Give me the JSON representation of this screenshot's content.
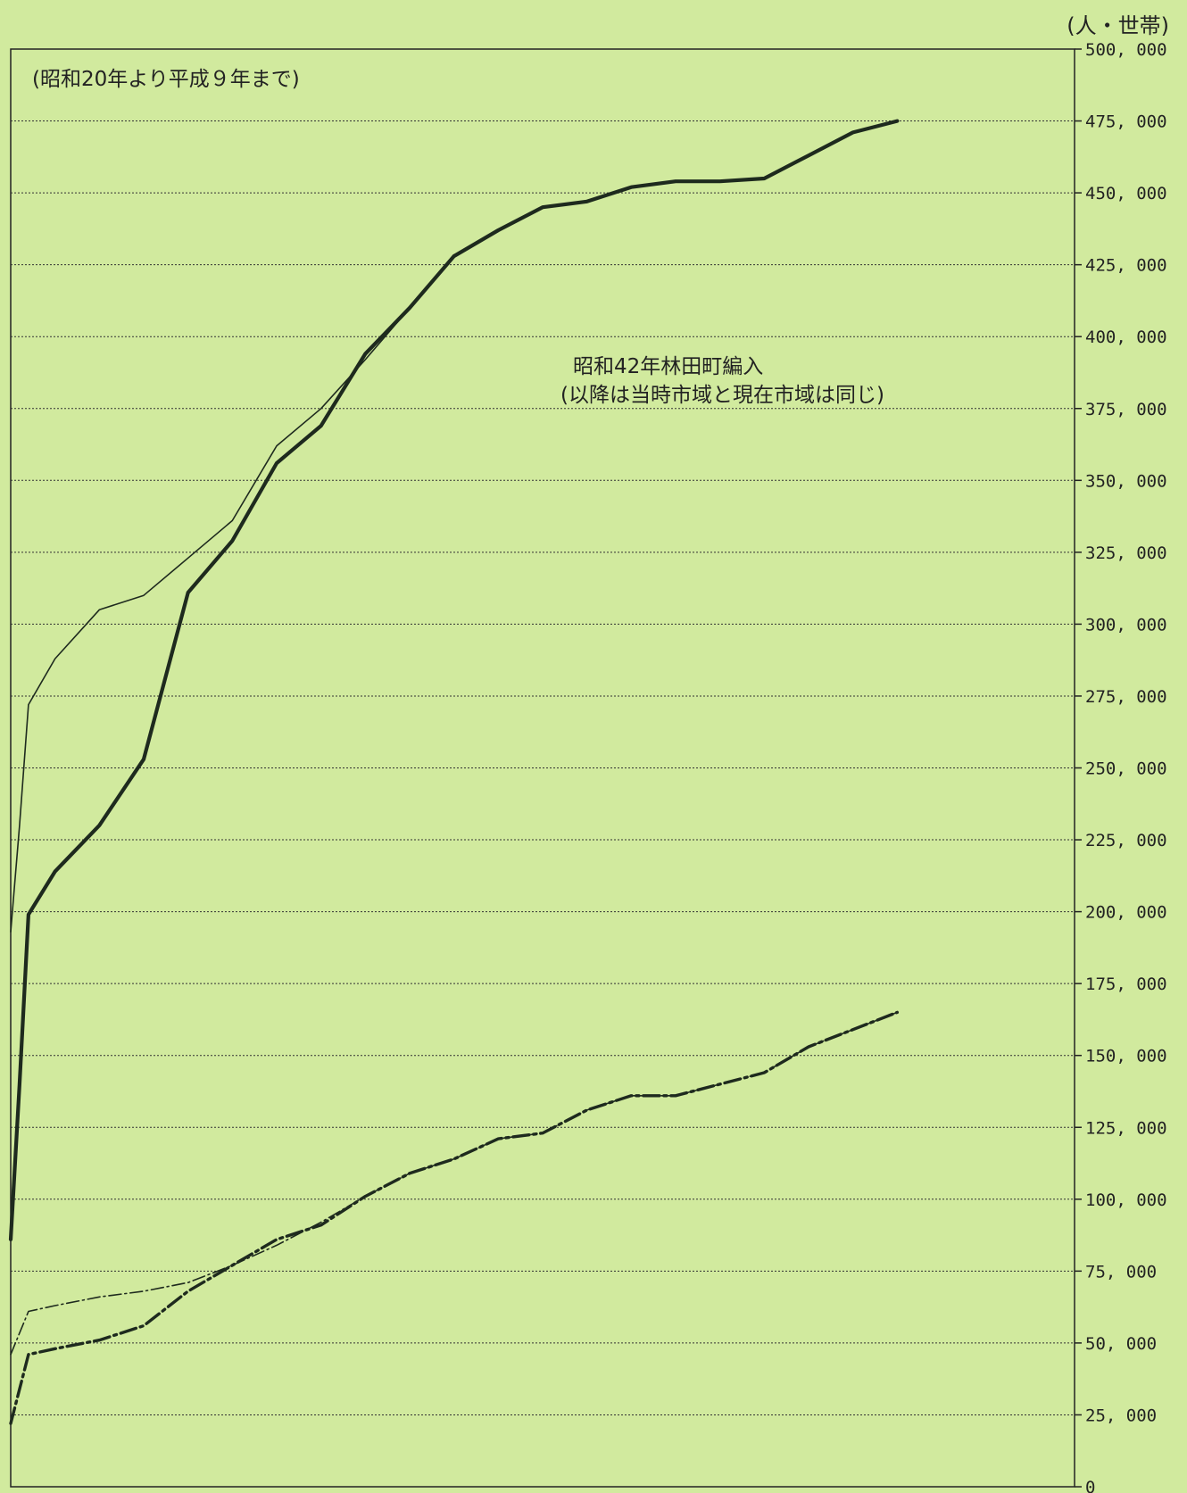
{
  "chart_data": {
    "type": "line",
    "unit_label": "(人・世帯)",
    "period_note": "(昭和20年より平成９年まで)",
    "annotation": {
      "lines": [
        "昭和42年林田町編入",
        "(以降は当時市域と現在市域は同じ)"
      ]
    },
    "ylim": [
      0,
      500000
    ],
    "yticks": [
      {
        "value": 0,
        "label": "0"
      },
      {
        "value": 25000,
        "label": "25, 000"
      },
      {
        "value": 50000,
        "label": "50, 000"
      },
      {
        "value": 75000,
        "label": "75, 000"
      },
      {
        "value": 100000,
        "label": "100, 000"
      },
      {
        "value": 125000,
        "label": "125, 000"
      },
      {
        "value": 150000,
        "label": "150, 000"
      },
      {
        "value": 175000,
        "label": "175, 000"
      },
      {
        "value": 200000,
        "label": "200, 000"
      },
      {
        "value": 225000,
        "label": "225, 000"
      },
      {
        "value": 250000,
        "label": "250, 000"
      },
      {
        "value": 275000,
        "label": "275, 000"
      },
      {
        "value": 300000,
        "label": "300, 000"
      },
      {
        "value": 325000,
        "label": "325, 000"
      },
      {
        "value": 350000,
        "label": "350, 000"
      },
      {
        "value": 375000,
        "label": "375, 000"
      },
      {
        "value": 400000,
        "label": "400, 000"
      },
      {
        "value": 425000,
        "label": "425, 000"
      },
      {
        "value": 450000,
        "label": "450, 000"
      },
      {
        "value": 475000,
        "label": "475, 000"
      },
      {
        "value": 500000,
        "label": "500, 000"
      }
    ],
    "grid": true,
    "x": [
      1945,
      1950,
      1955,
      1960,
      1965,
      1967,
      1970,
      1975,
      1980,
      1985,
      1990,
      1995,
      1997
    ],
    "series": [
      {
        "style": "thin-solid",
        "color": "#1e2a1e",
        "points": [
          [
            1945,
            193000
          ],
          [
            1946,
            230000
          ],
          [
            1947,
            272000
          ],
          [
            1950,
            288000
          ],
          [
            1955,
            305000
          ],
          [
            1960,
            310000
          ],
          [
            1965,
            323000
          ],
          [
            1970,
            336000
          ],
          [
            1975,
            362000
          ],
          [
            1980,
            375000
          ],
          [
            1985,
            392000
          ],
          [
            1990,
            410000
          ],
          [
            1995,
            428000
          ],
          [
            2000,
            437000
          ],
          [
            2005,
            445000
          ],
          [
            2010,
            447000
          ],
          [
            2015,
            452000
          ],
          [
            2020,
            454000
          ],
          [
            2025,
            454000
          ],
          [
            2030,
            455000
          ],
          [
            2035,
            463000
          ],
          [
            2040,
            471000
          ],
          [
            2045,
            475000
          ]
        ]
      },
      {
        "style": "thick-solid",
        "color": "#1e2a1e",
        "points": [
          [
            1945,
            86000
          ],
          [
            1946,
            140000
          ],
          [
            1947,
            199000
          ],
          [
            1950,
            214000
          ],
          [
            1955,
            230000
          ],
          [
            1960,
            253000
          ],
          [
            1965,
            311000
          ],
          [
            1970,
            329000
          ],
          [
            1975,
            356000
          ],
          [
            1980,
            369000
          ],
          [
            1985,
            394000
          ],
          [
            1990,
            410000
          ],
          [
            1995,
            428000
          ],
          [
            2000,
            437000
          ],
          [
            2005,
            445000
          ],
          [
            2010,
            447000
          ],
          [
            2015,
            452000
          ],
          [
            2020,
            454000
          ],
          [
            2025,
            454000
          ],
          [
            2030,
            455000
          ],
          [
            2035,
            463000
          ],
          [
            2040,
            471000
          ],
          [
            2045,
            475000
          ]
        ]
      },
      {
        "style": "thin-dashdot",
        "color": "#1e2a1e",
        "points": [
          [
            1945,
            46000
          ],
          [
            1947,
            61000
          ],
          [
            1950,
            63000
          ],
          [
            1955,
            66000
          ],
          [
            1960,
            68000
          ],
          [
            1965,
            71000
          ],
          [
            1970,
            77000
          ],
          [
            1975,
            84000
          ],
          [
            1980,
            92000
          ],
          [
            1985,
            101000
          ],
          [
            1990,
            109000
          ],
          [
            1995,
            114000
          ],
          [
            2000,
            121000
          ],
          [
            2005,
            123000
          ],
          [
            2010,
            131000
          ],
          [
            2015,
            136000
          ],
          [
            2020,
            136000
          ],
          [
            2025,
            140000
          ],
          [
            2030,
            144000
          ],
          [
            2035,
            153000
          ],
          [
            2040,
            159000
          ],
          [
            2045,
            165000
          ]
        ]
      },
      {
        "style": "thick-dashdot",
        "color": "#1e2a1e",
        "points": [
          [
            1945,
            22000
          ],
          [
            1947,
            46000
          ],
          [
            1950,
            48000
          ],
          [
            1955,
            51000
          ],
          [
            1960,
            56000
          ],
          [
            1965,
            68000
          ],
          [
            1970,
            77000
          ],
          [
            1975,
            86000
          ],
          [
            1980,
            91000
          ],
          [
            1985,
            101000
          ],
          [
            1990,
            109000
          ],
          [
            1995,
            114000
          ],
          [
            2000,
            121000
          ],
          [
            2005,
            123000
          ],
          [
            2010,
            131000
          ],
          [
            2015,
            136000
          ],
          [
            2020,
            136000
          ],
          [
            2025,
            140000
          ],
          [
            2030,
            144000
          ],
          [
            2035,
            153000
          ],
          [
            2040,
            159000
          ],
          [
            2045,
            165000
          ]
        ]
      }
    ]
  }
}
